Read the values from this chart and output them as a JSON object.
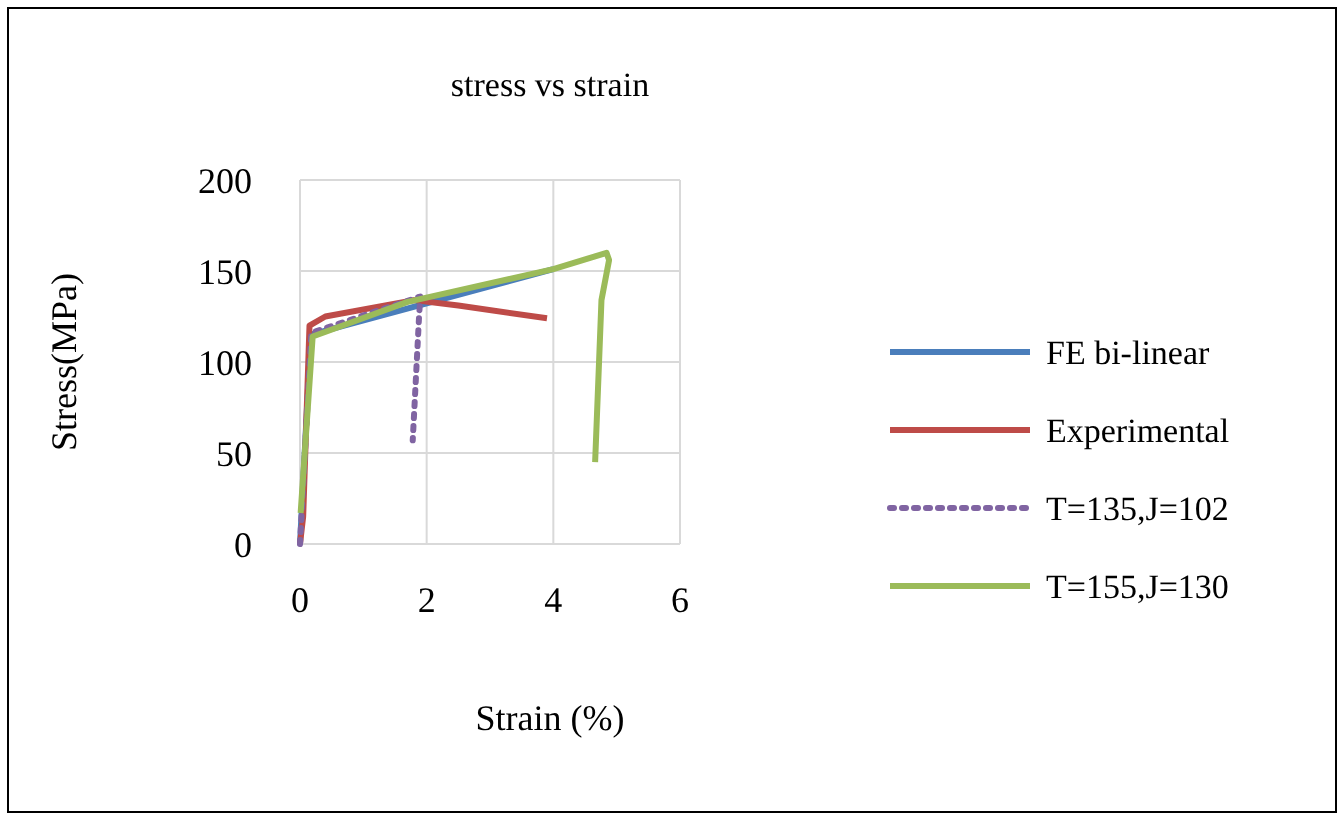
{
  "chart_data": {
    "type": "line",
    "title": "stress vs strain",
    "xlabel": "Strain (%)",
    "ylabel": "Stress(MPa)",
    "xlim": [
      0,
      6
    ],
    "xticks": [
      0,
      2,
      4,
      6
    ],
    "ylim": [
      0,
      200
    ],
    "yticks": [
      0,
      50,
      100,
      150,
      200
    ],
    "grid": true,
    "legend": "right",
    "series": [
      {
        "name": "FE bi-linear",
        "color": "#4a7ebb",
        "line_style": "solid",
        "x": [
          0,
          0.17,
          4
        ],
        "values": [
          0,
          115,
          151
        ]
      },
      {
        "name": "Experimental",
        "color": "#be4b48",
        "line_style": "solid",
        "x": [
          0,
          0.05,
          0.15,
          0.4,
          1.8,
          2.5,
          3.9
        ],
        "values": [
          0,
          15,
          120,
          125,
          134,
          131,
          124
        ]
      },
      {
        "name": "T=135,J=102",
        "color": "#8064a2",
        "line_style": "dotted",
        "x": [
          0,
          0.18,
          1.9,
          1.88,
          1.78
        ],
        "values": [
          0,
          116,
          136,
          125,
          57
        ]
      },
      {
        "name": "T=155,J=130",
        "color": "#9bbb59",
        "line_style": "solid",
        "x": [
          0.01,
          0.2,
          1.7,
          4,
          4.84,
          4.88,
          4.76,
          4.66
        ],
        "values": [
          17,
          114,
          133,
          151,
          160,
          156,
          134,
          45
        ]
      }
    ]
  }
}
